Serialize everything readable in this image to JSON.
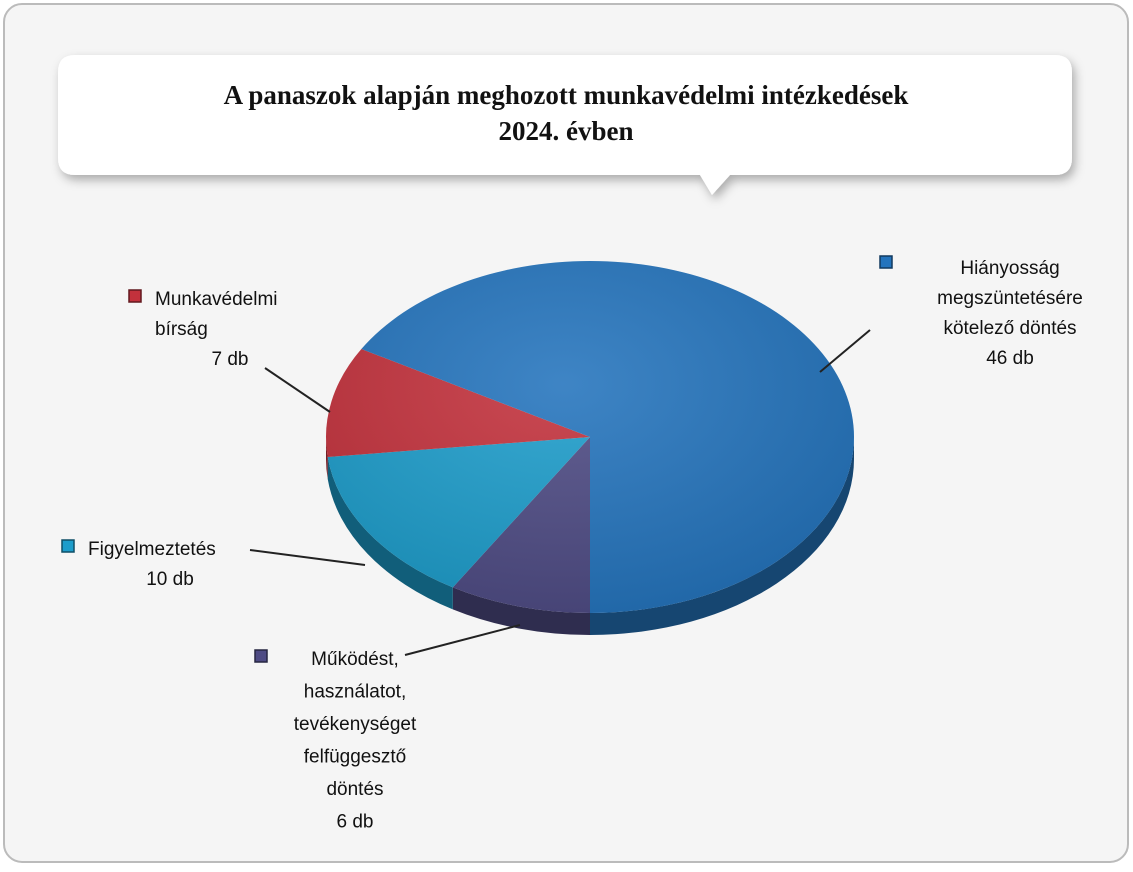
{
  "chart_data": {
    "type": "pie3d",
    "title": "A panaszok alapján meghozott munkavédelmi intézkedések\n2024. évben",
    "categories": [
      "Működést,\nhasználatot,\ntevékenységet\nfelfüggesztő\ndöntés",
      "Figyelmeztetés",
      "Munkavédelmi\nbírság",
      "Hiányosság\nmegszüntetésére\nkötelező döntés"
    ],
    "values": [
      6,
      10,
      7,
      46
    ],
    "value_labels": [
      "6 db",
      "10 db",
      "7 db",
      "46 db"
    ],
    "colors": [
      "#4e4b84",
      "#1d9dcb",
      "#c3313c",
      "#2474bd"
    ]
  }
}
